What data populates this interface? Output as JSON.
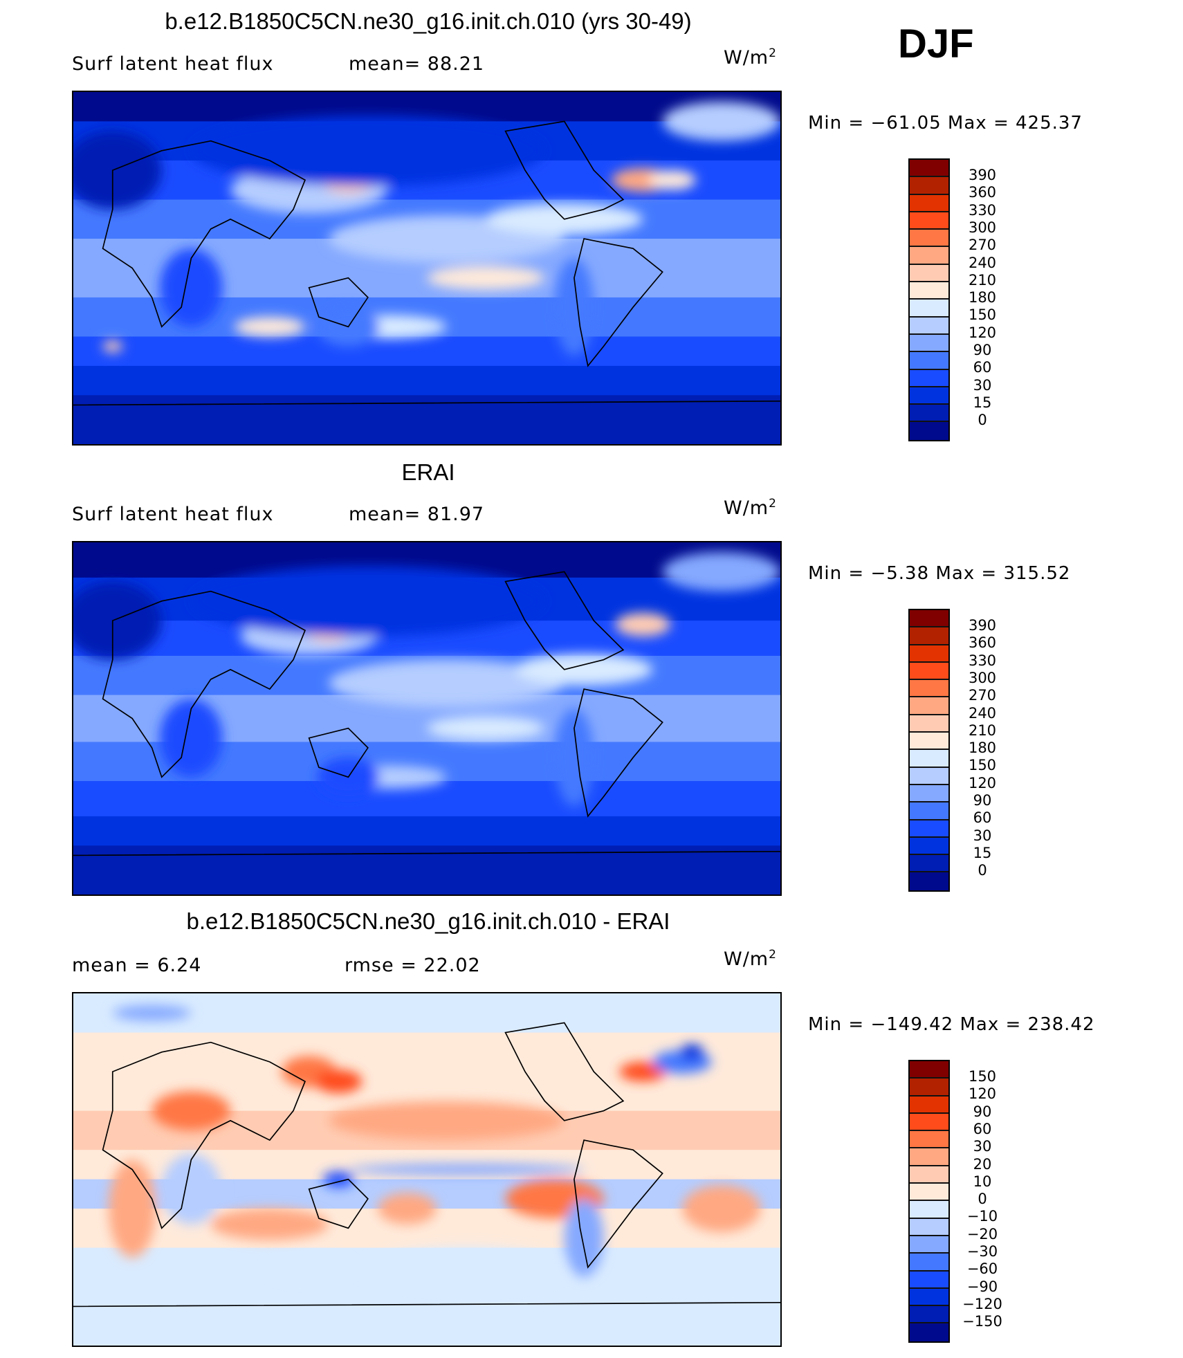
{
  "season": "DJF",
  "palette": [
    "#800000",
    "#b32200",
    "#e23300",
    "#ff4c1a",
    "#ff7744",
    "#ffa882",
    "#ffccb3",
    "#ffeada",
    "#d9ebff",
    "#b5cdff",
    "#85a9ff",
    "#4479ff",
    "#1a4cff",
    "#0033e0",
    "#001eb3",
    "#000a8c"
  ],
  "chart_data": [
    {
      "type": "heatmap",
      "title": "b.e12.B1850C5CN.ne30_g16.init.ch.010 (yrs 30-49)",
      "left_label": "Surf latent heat flux",
      "center_label": "mean=  88.21",
      "units": "W/m",
      "units_exp": "2",
      "minmax": "Min = −61.05 Max = 425.37",
      "colorbar_labels": [
        "390",
        "360",
        "330",
        "300",
        "270",
        "240",
        "210",
        "180",
        "150",
        "120",
        "90",
        "60",
        "30",
        "15",
        "0"
      ]
    },
    {
      "type": "heatmap",
      "title": "ERAI",
      "left_label": "Surf latent heat flux",
      "center_label": "mean=  81.97",
      "units": "W/m",
      "units_exp": "2",
      "minmax": "Min =  −5.38 Max = 315.52",
      "colorbar_labels": [
        "390",
        "360",
        "330",
        "300",
        "270",
        "240",
        "210",
        "180",
        "150",
        "120",
        "90",
        "60",
        "30",
        "15",
        "0"
      ]
    },
    {
      "type": "heatmap",
      "title": "b.e12.B1850C5CN.ne30_g16.init.ch.010 - ERAI",
      "left_label": "mean =    6.24",
      "center_label": "rmse =   22.02",
      "units": "W/m",
      "units_exp": "2",
      "minmax": "Min = −149.42 Max = 238.42",
      "colorbar_labels": [
        "150",
        "120",
        "90",
        "60",
        "30",
        "20",
        "10",
        "0",
        "−10",
        "−20",
        "−30",
        "−60",
        "−90",
        "−120",
        "−150"
      ]
    }
  ]
}
